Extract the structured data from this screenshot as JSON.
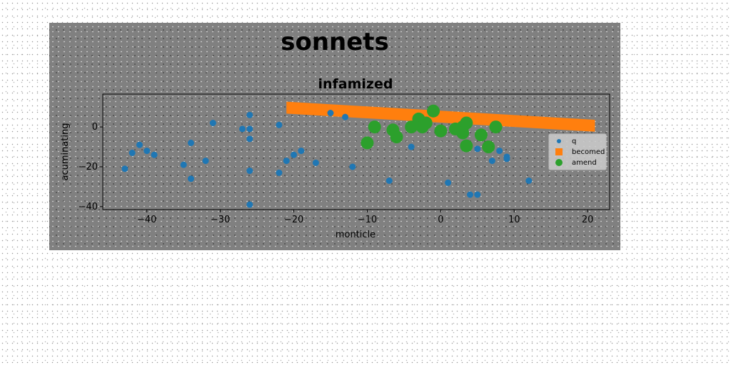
{
  "chart_data": {
    "type": "scatter",
    "suptitle": "sonnets",
    "title": "infamized",
    "xlabel": "monticle",
    "ylabel": "acuminating",
    "xlim": [
      -46,
      23
    ],
    "ylim": [
      -41.5,
      16.5
    ],
    "xticks": [
      -40,
      -30,
      -20,
      -10,
      0,
      10,
      20
    ],
    "yticks": [
      -40,
      -20,
      0
    ],
    "tick_labels_x": [
      "−40",
      "−30",
      "−20",
      "−10",
      "0",
      "10",
      "20"
    ],
    "tick_labels_y": [
      "−40",
      "−20",
      "0"
    ],
    "grid": false,
    "legend_position": "right",
    "series": [
      {
        "name": "q",
        "kind": "scatter",
        "color": "#1f77b4",
        "points": [
          [
            -43,
            -21
          ],
          [
            -42,
            -13
          ],
          [
            -41,
            -9
          ],
          [
            -40,
            -12
          ],
          [
            -39,
            -14
          ],
          [
            -35,
            -19
          ],
          [
            -34,
            -8
          ],
          [
            -34,
            -26
          ],
          [
            -32,
            -17
          ],
          [
            -31,
            2
          ],
          [
            -27,
            -1
          ],
          [
            -26,
            6
          ],
          [
            -26,
            -1
          ],
          [
            -26,
            -6
          ],
          [
            -26,
            -22
          ],
          [
            -26,
            -39
          ],
          [
            -22,
            1
          ],
          [
            -22,
            -23
          ],
          [
            -21,
            -17
          ],
          [
            -20,
            -14
          ],
          [
            -19,
            -12
          ],
          [
            -17,
            -18
          ],
          [
            -15,
            7
          ],
          [
            -13,
            5
          ],
          [
            -12,
            -20
          ],
          [
            -7,
            -27
          ],
          [
            -4,
            -10
          ],
          [
            1,
            -28
          ],
          [
            4,
            -34
          ],
          [
            5,
            -11
          ],
          [
            5,
            -34
          ],
          [
            7,
            -17
          ],
          [
            8,
            -12
          ],
          [
            9,
            -15
          ],
          [
            9,
            -16
          ],
          [
            12,
            -27
          ]
        ]
      },
      {
        "name": "becomed",
        "kind": "band",
        "color": "#ff7f0e",
        "start": [
          -21,
          12.7
        ],
        "end": [
          21,
          3.6
        ],
        "thickness": 6
      },
      {
        "name": "amend",
        "kind": "scatter",
        "color": "#2ca02c",
        "points": [
          [
            -10,
            -8
          ],
          [
            -9,
            0
          ],
          [
            -6.5,
            -1.5
          ],
          [
            -6,
            -5
          ],
          [
            -4,
            0
          ],
          [
            -3,
            4
          ],
          [
            -2.5,
            0
          ],
          [
            -2,
            2
          ],
          [
            -1,
            8
          ],
          [
            0,
            -2
          ],
          [
            2,
            -1
          ],
          [
            3,
            0
          ],
          [
            3,
            -3
          ],
          [
            3.5,
            2
          ],
          [
            3.5,
            -9.5
          ],
          [
            5.5,
            -4
          ],
          [
            6.5,
            -10
          ],
          [
            7.5,
            0
          ]
        ]
      }
    ]
  }
}
